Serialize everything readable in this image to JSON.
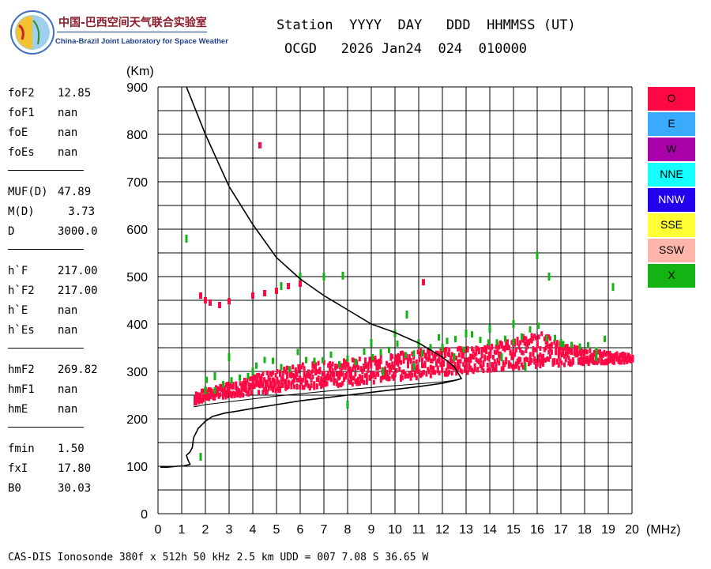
{
  "header": {
    "org_cn": "中国-巴西空间天气联合实验室",
    "org_en": "China-Brazil Joint Laboratory for Space Weather",
    "line1": "Station  YYYY  DAY   DDD  HHMMSS (UT)",
    "line2": "OCGD   2026 Jan24  024  010000"
  },
  "params": [
    {
      "name": "foF2",
      "value": "12.85"
    },
    {
      "name": "foF1",
      "value": "nan"
    },
    {
      "name": "foE",
      "value": "nan"
    },
    {
      "name": "foEs",
      "value": "nan"
    },
    {
      "sep": true
    },
    {
      "name": "MUF(D)",
      "value": "47.89"
    },
    {
      "name": "M(D)",
      "value": "3.73",
      "right": true
    },
    {
      "name": "D",
      "value": "3000.0"
    },
    {
      "sep": true
    },
    {
      "name": "h`F",
      "value": "217.00"
    },
    {
      "name": "h`F2",
      "value": "217.00"
    },
    {
      "name": "h`E",
      "value": "nan"
    },
    {
      "name": "h`Es",
      "value": "nan"
    },
    {
      "sep": true
    },
    {
      "name": "hmF2",
      "value": "269.82"
    },
    {
      "name": "hmF1",
      "value": "nan"
    },
    {
      "name": "hmE",
      "value": "nan"
    },
    {
      "sep": true
    },
    {
      "name": "fmin",
      "value": "1.50"
    },
    {
      "name": "fxI",
      "value": "17.80"
    },
    {
      "name": "B0",
      "value": "30.03"
    }
  ],
  "legend": [
    {
      "label": "O",
      "color": "#ff0844"
    },
    {
      "label": "E",
      "color": "#3aaaff"
    },
    {
      "label": "W",
      "color": "#aa00aa"
    },
    {
      "label": "NNE",
      "color": "#16ffff"
    },
    {
      "label": "NNW",
      "color": "#2200ee"
    },
    {
      "label": "SSE",
      "color": "#ffff33"
    },
    {
      "label": "SSW",
      "color": "#ffb6aa"
    },
    {
      "label": "X",
      "color": "#12b312"
    }
  ],
  "footer": "CAS-DIS Ionosonde 380f x 512h 50 kHz 2.5 km UDD = 007 7.08 S 36.65 W",
  "chart_data": {
    "type": "scatter",
    "xlabel": "(MHz)",
    "ylabel": "(Km)",
    "xlim": [
      0,
      20
    ],
    "ylim": [
      0,
      900
    ],
    "xticks": [
      "0",
      "1",
      "2",
      "3",
      "4",
      "5",
      "6",
      "7",
      "8",
      "9",
      "10",
      "11",
      "12",
      "13",
      "14",
      "15",
      "16",
      "17",
      "18",
      "19",
      "20"
    ],
    "yticks": [
      "0",
      "100",
      "200",
      "300",
      "400",
      "500",
      "600",
      "700",
      "800",
      "900"
    ],
    "grid": true,
    "series": [
      {
        "name": "O",
        "color": "#ff0844",
        "trace_lower": [
          [
            1.5,
            230
          ],
          [
            2,
            240
          ],
          [
            3,
            247
          ],
          [
            4,
            252
          ],
          [
            5,
            258
          ],
          [
            6,
            263
          ],
          [
            7,
            268
          ],
          [
            8,
            272
          ],
          [
            9,
            277
          ],
          [
            10,
            282
          ],
          [
            11,
            287
          ],
          [
            12,
            292
          ],
          [
            13,
            297
          ],
          [
            14,
            302
          ],
          [
            15,
            306
          ],
          [
            16,
            310
          ],
          [
            17,
            313
          ],
          [
            18,
            316
          ],
          [
            19,
            318
          ],
          [
            20,
            320
          ]
        ],
        "trace_upper": [
          [
            1.5,
            255
          ],
          [
            2,
            262
          ],
          [
            3,
            275
          ],
          [
            4,
            290
          ],
          [
            5,
            305
          ],
          [
            6,
            315
          ],
          [
            7,
            322
          ],
          [
            8,
            325
          ],
          [
            9,
            328
          ],
          [
            10,
            338
          ],
          [
            11,
            345
          ],
          [
            12,
            348
          ],
          [
            13,
            350
          ],
          [
            14,
            355
          ],
          [
            15,
            370
          ],
          [
            16,
            385
          ],
          [
            17,
            360
          ],
          [
            18,
            345
          ],
          [
            19,
            340
          ],
          [
            20,
            335
          ]
        ],
        "echoes_high": [
          [
            1.8,
            460
          ],
          [
            2.0,
            450
          ],
          [
            2.2,
            445
          ],
          [
            2.6,
            440
          ],
          [
            3.0,
            448
          ],
          [
            4.0,
            460
          ],
          [
            4.5,
            465
          ],
          [
            5.0,
            470
          ],
          [
            5.5,
            480
          ],
          [
            6.0,
            485
          ],
          [
            4.3,
            777
          ],
          [
            11.2,
            488
          ]
        ]
      },
      {
        "name": "X",
        "color": "#12b312",
        "points": [
          [
            1.2,
            580
          ],
          [
            1.8,
            120
          ],
          [
            2.0,
            260
          ],
          [
            2.4,
            290
          ],
          [
            3.0,
            330
          ],
          [
            4.0,
            300
          ],
          [
            5.2,
            480
          ],
          [
            6.0,
            500
          ],
          [
            7.0,
            500
          ],
          [
            7.8,
            502
          ],
          [
            9.0,
            360
          ],
          [
            10.0,
            380
          ],
          [
            10.5,
            420
          ],
          [
            11.0,
            360
          ],
          [
            12.0,
            350
          ],
          [
            13.0,
            380
          ],
          [
            14.0,
            390
          ],
          [
            15.0,
            400
          ],
          [
            16.0,
            545
          ],
          [
            16.5,
            500
          ],
          [
            17.0,
            360
          ],
          [
            19.2,
            478
          ],
          [
            8.0,
            230
          ],
          [
            9.5,
            300
          ],
          [
            10.8,
            310
          ],
          [
            12.5,
            330
          ],
          [
            14.5,
            330
          ],
          [
            15.5,
            310
          ],
          [
            18.5,
            330
          ]
        ]
      }
    ],
    "profile_curve": [
      [
        0.1,
        98
      ],
      [
        0.4,
        98
      ],
      [
        0.8,
        100
      ],
      [
        1.1,
        101
      ],
      [
        1.35,
        104
      ],
      [
        1.25,
        115
      ],
      [
        1.2,
        123
      ],
      [
        1.35,
        130
      ],
      [
        1.45,
        140
      ],
      [
        1.5,
        160
      ],
      [
        1.7,
        180
      ],
      [
        2.0,
        195
      ],
      [
        2.3,
        205
      ],
      [
        2.8,
        212
      ],
      [
        3.3,
        216
      ],
      [
        4,
        222
      ],
      [
        5,
        230
      ],
      [
        6,
        238
      ],
      [
        7,
        244
      ],
      [
        8,
        250
      ],
      [
        9,
        256
      ],
      [
        10,
        262
      ],
      [
        11,
        268
      ],
      [
        12,
        275
      ],
      [
        12.6,
        282
      ],
      [
        12.8,
        285
      ],
      [
        12.5,
        310
      ],
      [
        12.0,
        330
      ],
      [
        11.0,
        360
      ],
      [
        10.0,
        382
      ],
      [
        9.0,
        400
      ],
      [
        8.0,
        430
      ],
      [
        7.0,
        460
      ],
      [
        6.0,
        495
      ],
      [
        5.0,
        540
      ],
      [
        4.0,
        610
      ],
      [
        3.0,
        690
      ],
      [
        2.0,
        800
      ],
      [
        1.2,
        900
      ]
    ],
    "profile_curve2": [
      [
        1.5,
        225
      ],
      [
        2,
        230
      ],
      [
        3,
        236
      ],
      [
        4,
        242
      ],
      [
        5,
        248
      ],
      [
        6,
        253
      ],
      [
        7,
        258
      ],
      [
        8,
        262
      ],
      [
        9,
        266
      ],
      [
        10,
        270
      ],
      [
        11,
        274
      ],
      [
        12,
        278
      ],
      [
        12.6,
        282
      ]
    ]
  }
}
